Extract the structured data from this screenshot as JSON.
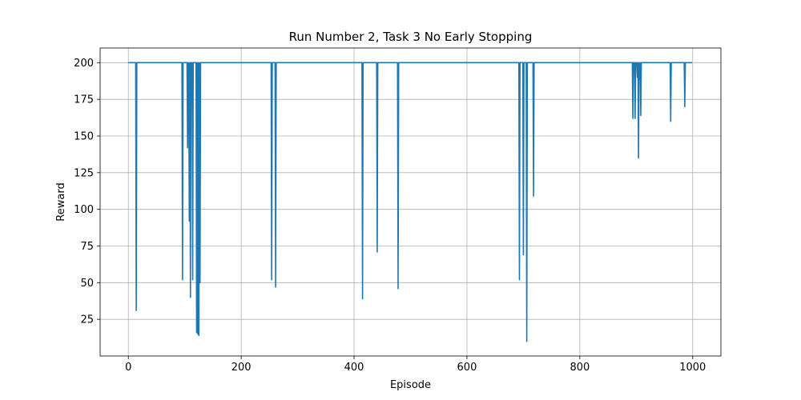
{
  "chart_data": {
    "type": "line",
    "title": "Run Number 2, Task 3 No Early Stopping",
    "xlabel": "Episode",
    "ylabel": "Reward",
    "xlim": [
      -50,
      1050
    ],
    "ylim": [
      0,
      210
    ],
    "xticks": [
      0,
      200,
      400,
      600,
      800,
      1000
    ],
    "yticks": [
      25,
      50,
      75,
      100,
      125,
      150,
      175,
      200
    ],
    "grid": true,
    "series_color": "#1f77b4",
    "series": [
      {
        "x": [
          0,
          13,
          14,
          15,
          95,
          96,
          97,
          104,
          105,
          106,
          107,
          108,
          109,
          110,
          111,
          113,
          114,
          115,
          116,
          120,
          121,
          122,
          123,
          124,
          125,
          126,
          127,
          128,
          253,
          254,
          255,
          260,
          261,
          262,
          414,
          415,
          416,
          440,
          441,
          442,
          477,
          478,
          479,
          692,
          693,
          694,
          699,
          700,
          701,
          705,
          706,
          707,
          717,
          718,
          719,
          893,
          894,
          895,
          897,
          898,
          899,
          901,
          902,
          903,
          904,
          905,
          906,
          907,
          908,
          909,
          910,
          960,
          961,
          962,
          985,
          986,
          987,
          999
        ],
        "y": [
          200,
          200,
          31,
          200,
          200,
          52,
          200,
          200,
          142,
          200,
          200,
          92,
          200,
          40,
          200,
          200,
          52,
          200,
          200,
          200,
          16,
          200,
          15,
          200,
          14,
          200,
          50,
          200,
          200,
          52,
          200,
          200,
          47,
          200,
          200,
          39,
          200,
          200,
          71,
          200,
          200,
          46,
          200,
          200,
          52,
          200,
          200,
          69,
          200,
          200,
          10,
          200,
          200,
          109,
          200,
          200,
          162,
          200,
          200,
          162,
          200,
          200,
          190,
          200,
          135,
          200,
          188,
          200,
          164,
          200,
          200,
          200,
          160,
          200,
          200,
          170,
          200,
          200
        ]
      }
    ]
  }
}
